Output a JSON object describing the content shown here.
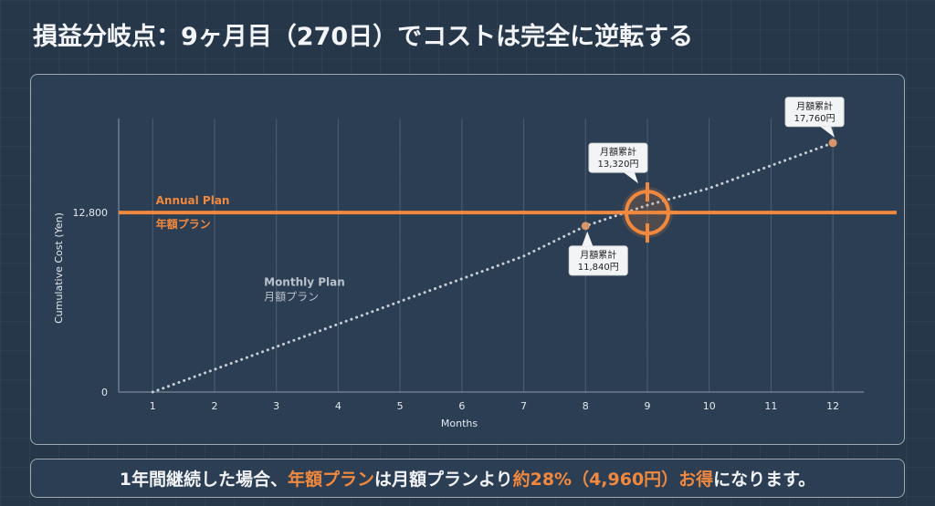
{
  "title": "損益分岐点：9ヶ月目（270日）でコストは完全に逆転する",
  "chart_data": {
    "type": "line",
    "xlabel": "Months",
    "ylabel": "Cumulative Cost (Yen)",
    "x": [
      1,
      2,
      3,
      4,
      5,
      6,
      7,
      8,
      9,
      10,
      11,
      12
    ],
    "xlim": [
      0.45,
      12.5
    ],
    "ylim": [
      0,
      19500
    ],
    "y_ticks": [
      0,
      12800
    ],
    "y_tick_labels": [
      "0",
      "12,800"
    ],
    "grid": "vertical",
    "series": [
      {
        "name": "Annual Plan",
        "name_ja": "年額プラン",
        "style": "solid",
        "color": "#f0883e",
        "values": [
          12800,
          12800,
          12800,
          12800,
          12800,
          12800,
          12800,
          12800,
          12800,
          12800,
          12800,
          12800
        ]
      },
      {
        "name": "Monthly Plan",
        "name_ja": "月額プラン",
        "style": "dotted",
        "color": "#c9ced6",
        "values": [
          0,
          1614,
          3229,
          4844,
          6458,
          8073,
          9687,
          11840,
          13320,
          14530,
          16145,
          17760
        ]
      }
    ],
    "annotations": [
      {
        "x": 8,
        "y": 11840,
        "line1": "月額累計",
        "line2": "11,840円"
      },
      {
        "x": 9,
        "y": 13320,
        "line1": "月額累計",
        "line2": "13,320円"
      },
      {
        "x": 12,
        "y": 17760,
        "line1": "月額累計",
        "line2": "17,760円"
      }
    ],
    "breakeven_month": 9,
    "colors": {
      "annual": "#f0883e",
      "monthly": "#c9ced6",
      "grid": "#4c5f75",
      "axis": "#8e9bab"
    }
  },
  "footer": {
    "part1": "1年間継続した場合、",
    "part2": "年額プラン",
    "part3": "は月額プランより",
    "part4": "約28%（4,960円）お得",
    "part5": "になります。"
  }
}
